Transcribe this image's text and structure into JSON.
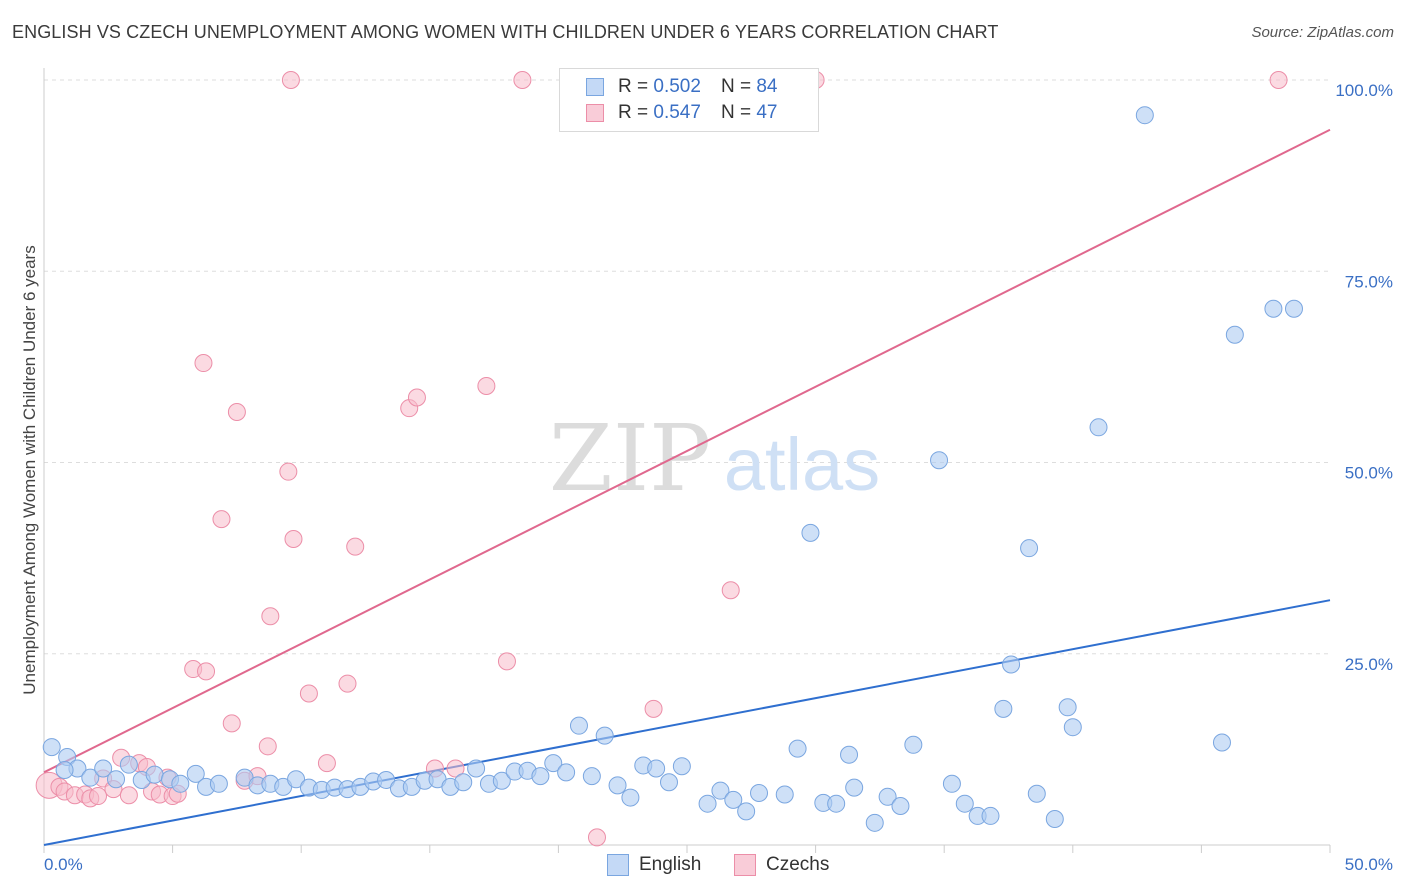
{
  "title": "ENGLISH VS CZECH UNEMPLOYMENT AMONG WOMEN WITH CHILDREN UNDER 6 YEARS CORRELATION CHART",
  "source": "Source: ZipAtlas.com",
  "watermark": {
    "zip": "ZIP",
    "atlas": "atlas"
  },
  "legend": {
    "english": {
      "r_label": "R =",
      "r_value": "0.502",
      "n_label": "N =",
      "n_value": "84"
    },
    "czechs": {
      "r_label": "R =",
      "r_value": "0.547",
      "n_label": "N =",
      "n_value": "47"
    }
  },
  "bottom_legend": {
    "english": "English",
    "czechs": "Czechs"
  },
  "colors": {
    "english_fill": "#aecbf2",
    "english_stroke": "#7aa6e0",
    "english_line": "#2f6fcf",
    "czech_fill": "#f7bccb",
    "czech_stroke": "#ec8ea8",
    "czech_line": "#e0688e",
    "tick_text": "#3a6fc4",
    "grid": "#dddddd"
  },
  "chart_data": {
    "type": "scatter",
    "title": "ENGLISH VS CZECH UNEMPLOYMENT AMONG WOMEN WITH CHILDREN UNDER 6 YEARS CORRELATION CHART",
    "xlabel": "",
    "ylabel": "Unemployment Among Women with Children Under 6 years",
    "xlim": [
      0,
      50
    ],
    "ylim": [
      0,
      102
    ],
    "x_ticks": [
      {
        "value": 0,
        "label": "0.0%"
      },
      {
        "value": 50,
        "label": "50.0%"
      }
    ],
    "y_ticks": [
      {
        "value": 25,
        "label": "25.0%"
      },
      {
        "value": 50,
        "label": "50.0%"
      },
      {
        "value": 75,
        "label": "75.0%"
      },
      {
        "value": 100,
        "label": "100.0%"
      }
    ],
    "grid": true,
    "legend_position": "top-center",
    "series": [
      {
        "name": "English",
        "r": 0.502,
        "n": 84,
        "trend": {
          "x": [
            0,
            50
          ],
          "y": [
            0,
            32
          ]
        },
        "points": [
          [
            0.3,
            12.8
          ],
          [
            0.9,
            11.5
          ],
          [
            1.3,
            10.0
          ],
          [
            1.8,
            8.8
          ],
          [
            2.3,
            10.0
          ],
          [
            2.8,
            8.6
          ],
          [
            3.3,
            10.5
          ],
          [
            3.8,
            8.5
          ],
          [
            4.3,
            9.2
          ],
          [
            4.9,
            8.6
          ],
          [
            5.3,
            8.0
          ],
          [
            5.9,
            9.3
          ],
          [
            6.3,
            7.6
          ],
          [
            6.8,
            8.0
          ],
          [
            7.8,
            8.8
          ],
          [
            8.3,
            7.8
          ],
          [
            8.8,
            8.0
          ],
          [
            9.3,
            7.6
          ],
          [
            9.8,
            8.6
          ],
          [
            10.3,
            7.5
          ],
          [
            10.8,
            7.2
          ],
          [
            11.3,
            7.5
          ],
          [
            11.8,
            7.3
          ],
          [
            12.3,
            7.6
          ],
          [
            12.8,
            8.3
          ],
          [
            13.3,
            8.5
          ],
          [
            13.8,
            7.4
          ],
          [
            14.3,
            7.6
          ],
          [
            14.8,
            8.4
          ],
          [
            15.3,
            8.6
          ],
          [
            15.8,
            7.6
          ],
          [
            16.3,
            8.2
          ],
          [
            16.8,
            10.0
          ],
          [
            17.3,
            8.0
          ],
          [
            17.8,
            8.4
          ],
          [
            18.3,
            9.6
          ],
          [
            18.8,
            9.7
          ],
          [
            19.3,
            9.0
          ],
          [
            19.8,
            10.7
          ],
          [
            20.3,
            9.5
          ],
          [
            20.8,
            15.6
          ],
          [
            21.3,
            9.0
          ],
          [
            21.8,
            14.3
          ],
          [
            22.3,
            7.8
          ],
          [
            22.8,
            6.2
          ],
          [
            23.3,
            10.4
          ],
          [
            23.8,
            10.0
          ],
          [
            24.3,
            8.2
          ],
          [
            24.8,
            10.3
          ],
          [
            25.8,
            5.4
          ],
          [
            26.3,
            7.1
          ],
          [
            26.8,
            5.9
          ],
          [
            27.3,
            4.4
          ],
          [
            27.8,
            6.8
          ],
          [
            28.8,
            6.6
          ],
          [
            29.3,
            12.6
          ],
          [
            29.8,
            40.8
          ],
          [
            30.3,
            5.5
          ],
          [
            30.8,
            5.4
          ],
          [
            31.3,
            11.8
          ],
          [
            31.5,
            7.5
          ],
          [
            32.3,
            2.9
          ],
          [
            32.8,
            6.3
          ],
          [
            33.3,
            5.1
          ],
          [
            33.8,
            13.1
          ],
          [
            34.8,
            50.3
          ],
          [
            35.3,
            8.0
          ],
          [
            35.8,
            5.4
          ],
          [
            36.3,
            3.8
          ],
          [
            36.8,
            3.8
          ],
          [
            37.3,
            17.8
          ],
          [
            37.6,
            23.6
          ],
          [
            38.3,
            38.8
          ],
          [
            38.6,
            6.7
          ],
          [
            39.3,
            3.4
          ],
          [
            39.8,
            18.0
          ],
          [
            40.0,
            15.4
          ],
          [
            41.0,
            54.6
          ],
          [
            42.8,
            95.4
          ],
          [
            45.8,
            13.4
          ],
          [
            46.3,
            66.7
          ],
          [
            47.8,
            70.1
          ],
          [
            48.6,
            70.1
          ],
          [
            0.8,
            9.8
          ]
        ]
      },
      {
        "name": "Czechs",
        "r": 0.547,
        "n": 47,
        "trend": {
          "x": [
            0,
            50
          ],
          "y": [
            9.5,
            93.5
          ]
        },
        "points": [
          [
            0.2,
            7.8
          ],
          [
            0.6,
            7.6
          ],
          [
            0.8,
            7.0
          ],
          [
            1.2,
            6.5
          ],
          [
            1.6,
            6.6
          ],
          [
            1.8,
            6.1
          ],
          [
            2.1,
            6.4
          ],
          [
            2.3,
            8.7
          ],
          [
            2.7,
            7.3
          ],
          [
            3.0,
            11.4
          ],
          [
            3.3,
            6.5
          ],
          [
            3.7,
            10.7
          ],
          [
            4.0,
            10.2
          ],
          [
            4.2,
            7.0
          ],
          [
            4.5,
            6.6
          ],
          [
            4.8,
            8.8
          ],
          [
            5.0,
            6.4
          ],
          [
            5.2,
            6.7
          ],
          [
            5.8,
            23.0
          ],
          [
            6.2,
            63.0
          ],
          [
            6.3,
            22.7
          ],
          [
            6.9,
            42.6
          ],
          [
            7.3,
            15.9
          ],
          [
            7.5,
            56.6
          ],
          [
            7.8,
            8.4
          ],
          [
            8.3,
            9.0
          ],
          [
            8.7,
            12.9
          ],
          [
            8.8,
            29.9
          ],
          [
            9.5,
            48.8
          ],
          [
            9.6,
            100.0
          ],
          [
            9.7,
            40.0
          ],
          [
            10.3,
            19.8
          ],
          [
            11.0,
            10.7
          ],
          [
            11.8,
            21.1
          ],
          [
            12.1,
            39.0
          ],
          [
            14.2,
            57.1
          ],
          [
            14.5,
            58.5
          ],
          [
            15.2,
            10.0
          ],
          [
            16.0,
            10.0
          ],
          [
            17.2,
            60.0
          ],
          [
            18.0,
            24.0
          ],
          [
            18.6,
            100.0
          ],
          [
            21.5,
            1.0
          ],
          [
            23.7,
            17.8
          ],
          [
            26.7,
            33.3
          ],
          [
            30.0,
            100.0
          ],
          [
            48.0,
            100.0
          ]
        ]
      }
    ]
  }
}
